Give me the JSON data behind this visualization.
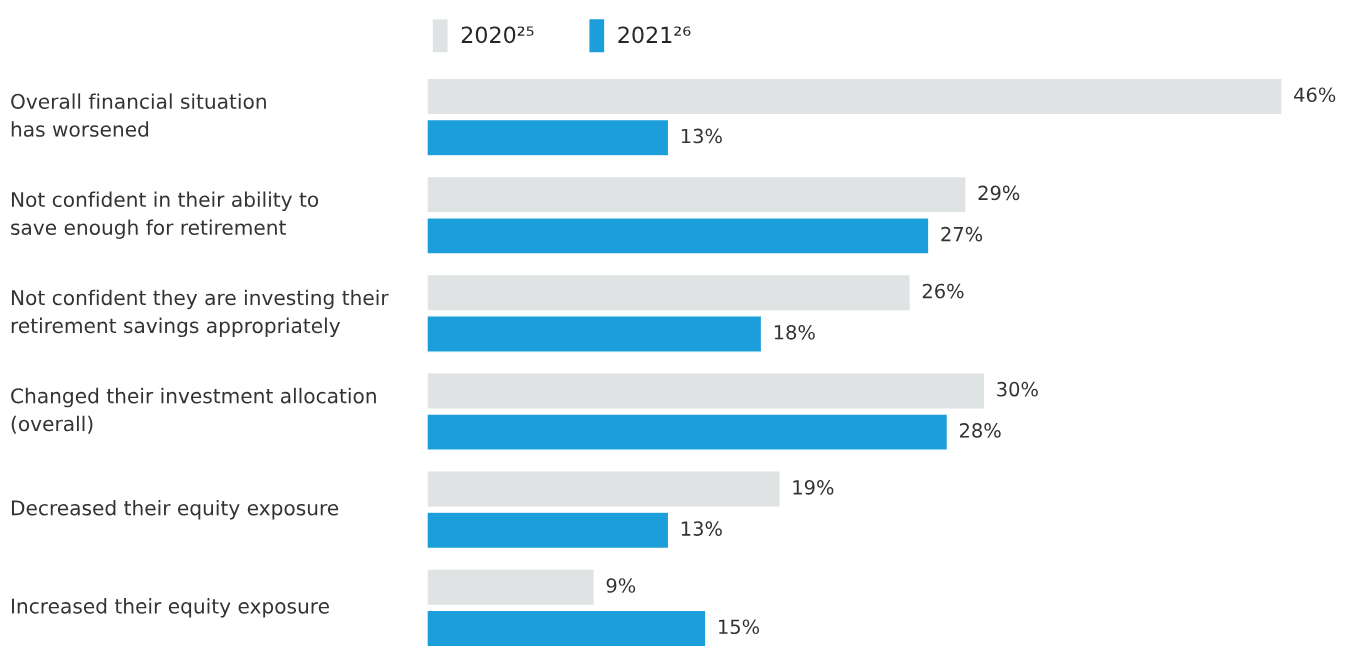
{
  "chart_data": {
    "type": "bar",
    "orientation": "horizontal",
    "categories": [
      "Overall financial situation\nhas worsened",
      "Not confident in their ability to\nsave enough for retirement",
      "Not confident they are investing their\nretirement savings appropriately",
      "Changed their investment allocation\n(overall)",
      "Decreased their equity exposure",
      "Increased their equity exposure"
    ],
    "series": [
      {
        "name": "2020²⁵",
        "color": "#dfe3e3",
        "values": [
          46,
          29,
          26,
          30,
          19,
          9
        ],
        "value_labels": [
          "46%",
          "29%",
          "26%",
          "30%",
          "19%",
          "9%"
        ]
      },
      {
        "name": "2021²⁶",
        "color": "#1b9ed9",
        "values": [
          13,
          27,
          18,
          28,
          13,
          15
        ],
        "value_labels": [
          "13%",
          "27%",
          "18%",
          "28%",
          "13%",
          "15%"
        ]
      }
    ],
    "legend": "top"
  }
}
